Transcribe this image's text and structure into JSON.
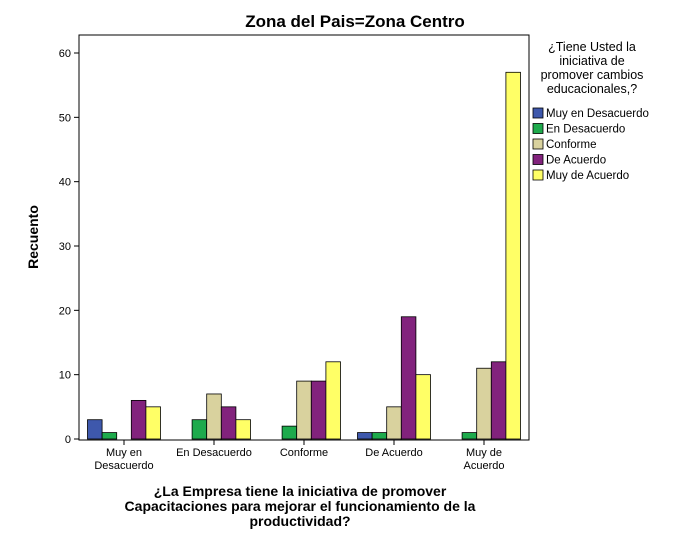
{
  "chart_data": {
    "type": "bar",
    "title": "Zona del Pais=Zona Centro",
    "xlabel": [
      "¿La Empresa tiene la iniciativa de promover",
      "Capacitaciones para mejorar el funcionamiento de la",
      "productividad?"
    ],
    "ylabel": "Recuento",
    "ylim": [
      0,
      60
    ],
    "yticks": [
      "0",
      "10",
      "20",
      "30",
      "40",
      "50",
      "60"
    ],
    "grid": false,
    "legend_position": "right",
    "legend_title": [
      "¿Tiene Usted la",
      "iniciativa de",
      "promover cambios",
      "educacionales,?"
    ],
    "categories": [
      [
        "Muy en",
        "Desacuerdo"
      ],
      [
        "En Desacuerdo"
      ],
      [
        "Conforme"
      ],
      [
        "De Acuerdo"
      ],
      [
        "Muy de",
        "Acuerdo"
      ]
    ],
    "series": [
      {
        "name": "Muy en Desacuerdo",
        "color": "#3E58AC",
        "values": [
          3,
          0,
          0,
          1,
          0
        ]
      },
      {
        "name": "En Desacuerdo",
        "color": "#1EAA4C",
        "values": [
          1,
          3,
          2,
          1,
          1
        ]
      },
      {
        "name": "Conforme",
        "color": "#D9D29E",
        "values": [
          0,
          7,
          9,
          5,
          11
        ]
      },
      {
        "name": "De Acuerdo",
        "color": "#82237D",
        "values": [
          6,
          5,
          9,
          19,
          12
        ]
      },
      {
        "name": "Muy de Acuerdo",
        "color": "#FFFF66",
        "values": [
          5,
          3,
          12,
          10,
          57
        ]
      }
    ]
  }
}
